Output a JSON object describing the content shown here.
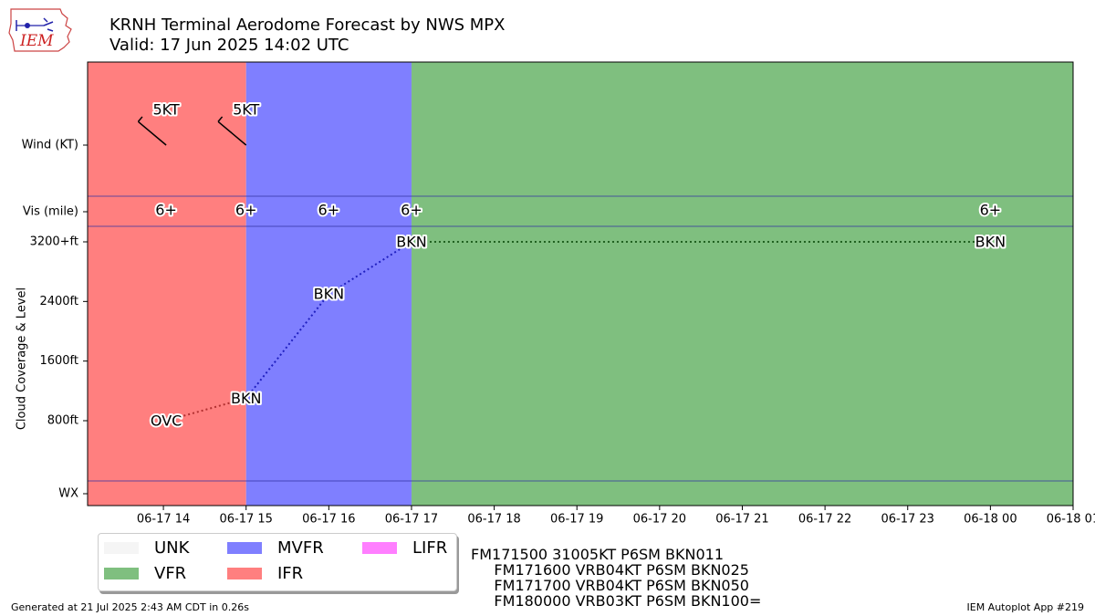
{
  "header": {
    "title": "KRNH Terminal Aerodome Forecast by NWS MPX",
    "subtitle": "Valid: 17 Jun 2025 14:02 UTC",
    "logo_text": "IEM"
  },
  "colors": {
    "IFR": "#ff7f7f",
    "MVFR": "#7f7fff",
    "VFR": "#7fbf7f",
    "LIFR": "#ff7fff",
    "UNK": "#f5f5f5",
    "ovc_line": "#b03030",
    "bkn_line": "#2020c0",
    "vfr_line": "#206020"
  },
  "chart_data": {
    "type": "scatter",
    "ylabel": "Cloud Coverage & Level",
    "y_categories": [
      "WX",
      "800ft",
      "1600ft",
      "2400ft",
      "3200+ft",
      "Vis (mile)",
      "Wind (KT)"
    ],
    "xticks": [
      "06-17 14",
      "06-17 15",
      "06-17 16",
      "06-17 17",
      "06-17 18",
      "06-17 19",
      "06-17 20",
      "06-17 21",
      "06-17 22",
      "06-17 23",
      "06-18 00",
      "06-18 01"
    ],
    "flight_category_periods": [
      {
        "start": "06-17 14:02",
        "end": "06-17 15:00",
        "category": "IFR"
      },
      {
        "start": "06-17 15:00",
        "end": "06-17 17:00",
        "category": "MVFR"
      },
      {
        "start": "06-17 17:00",
        "end": "06-18 01:00",
        "category": "VFR"
      }
    ],
    "wind": [
      {
        "time": "06-17 14:02",
        "label": "5KT",
        "direction_deg": 310,
        "speed_kt": 5
      },
      {
        "time": "06-17 15:00",
        "label": "5KT",
        "direction_deg": 310,
        "speed_kt": 5
      }
    ],
    "visibility": [
      {
        "time": "06-17 14:02",
        "label": "6+"
      },
      {
        "time": "06-17 15:00",
        "label": "6+"
      },
      {
        "time": "06-17 16:00",
        "label": "6+"
      },
      {
        "time": "06-17 17:00",
        "label": "6+"
      },
      {
        "time": "06-18 00:00",
        "label": "6+"
      }
    ],
    "clouds": [
      {
        "time": "06-17 14:02",
        "coverage": "OVC",
        "level_ft": 800
      },
      {
        "time": "06-17 15:00",
        "coverage": "BKN",
        "level_ft": 1100
      },
      {
        "time": "06-17 16:00",
        "coverage": "BKN",
        "level_ft": 2500
      },
      {
        "time": "06-17 17:00",
        "coverage": "BKN",
        "level_ft": 3200
      },
      {
        "time": "06-18 00:00",
        "coverage": "BKN",
        "level_ft": 3200
      }
    ]
  },
  "legend": [
    {
      "label": "UNK",
      "category": "UNK"
    },
    {
      "label": "VFR",
      "category": "VFR"
    },
    {
      "label": "MVFR",
      "category": "MVFR"
    },
    {
      "label": "IFR",
      "category": "IFR"
    },
    {
      "label": "LIFR",
      "category": "LIFR"
    }
  ],
  "raw_taf": [
    "FM171500 31005KT P6SM BKN011",
    "     FM171600 VRB04KT P6SM BKN025",
    "     FM171700 VRB04KT P6SM BKN050",
    "     FM180000 VRB03KT P6SM BKN100="
  ],
  "footer": {
    "generated": "Generated at 21 Jul 2025 2:43 AM CDT in 0.26s",
    "app": "IEM Autoplot App #219"
  }
}
